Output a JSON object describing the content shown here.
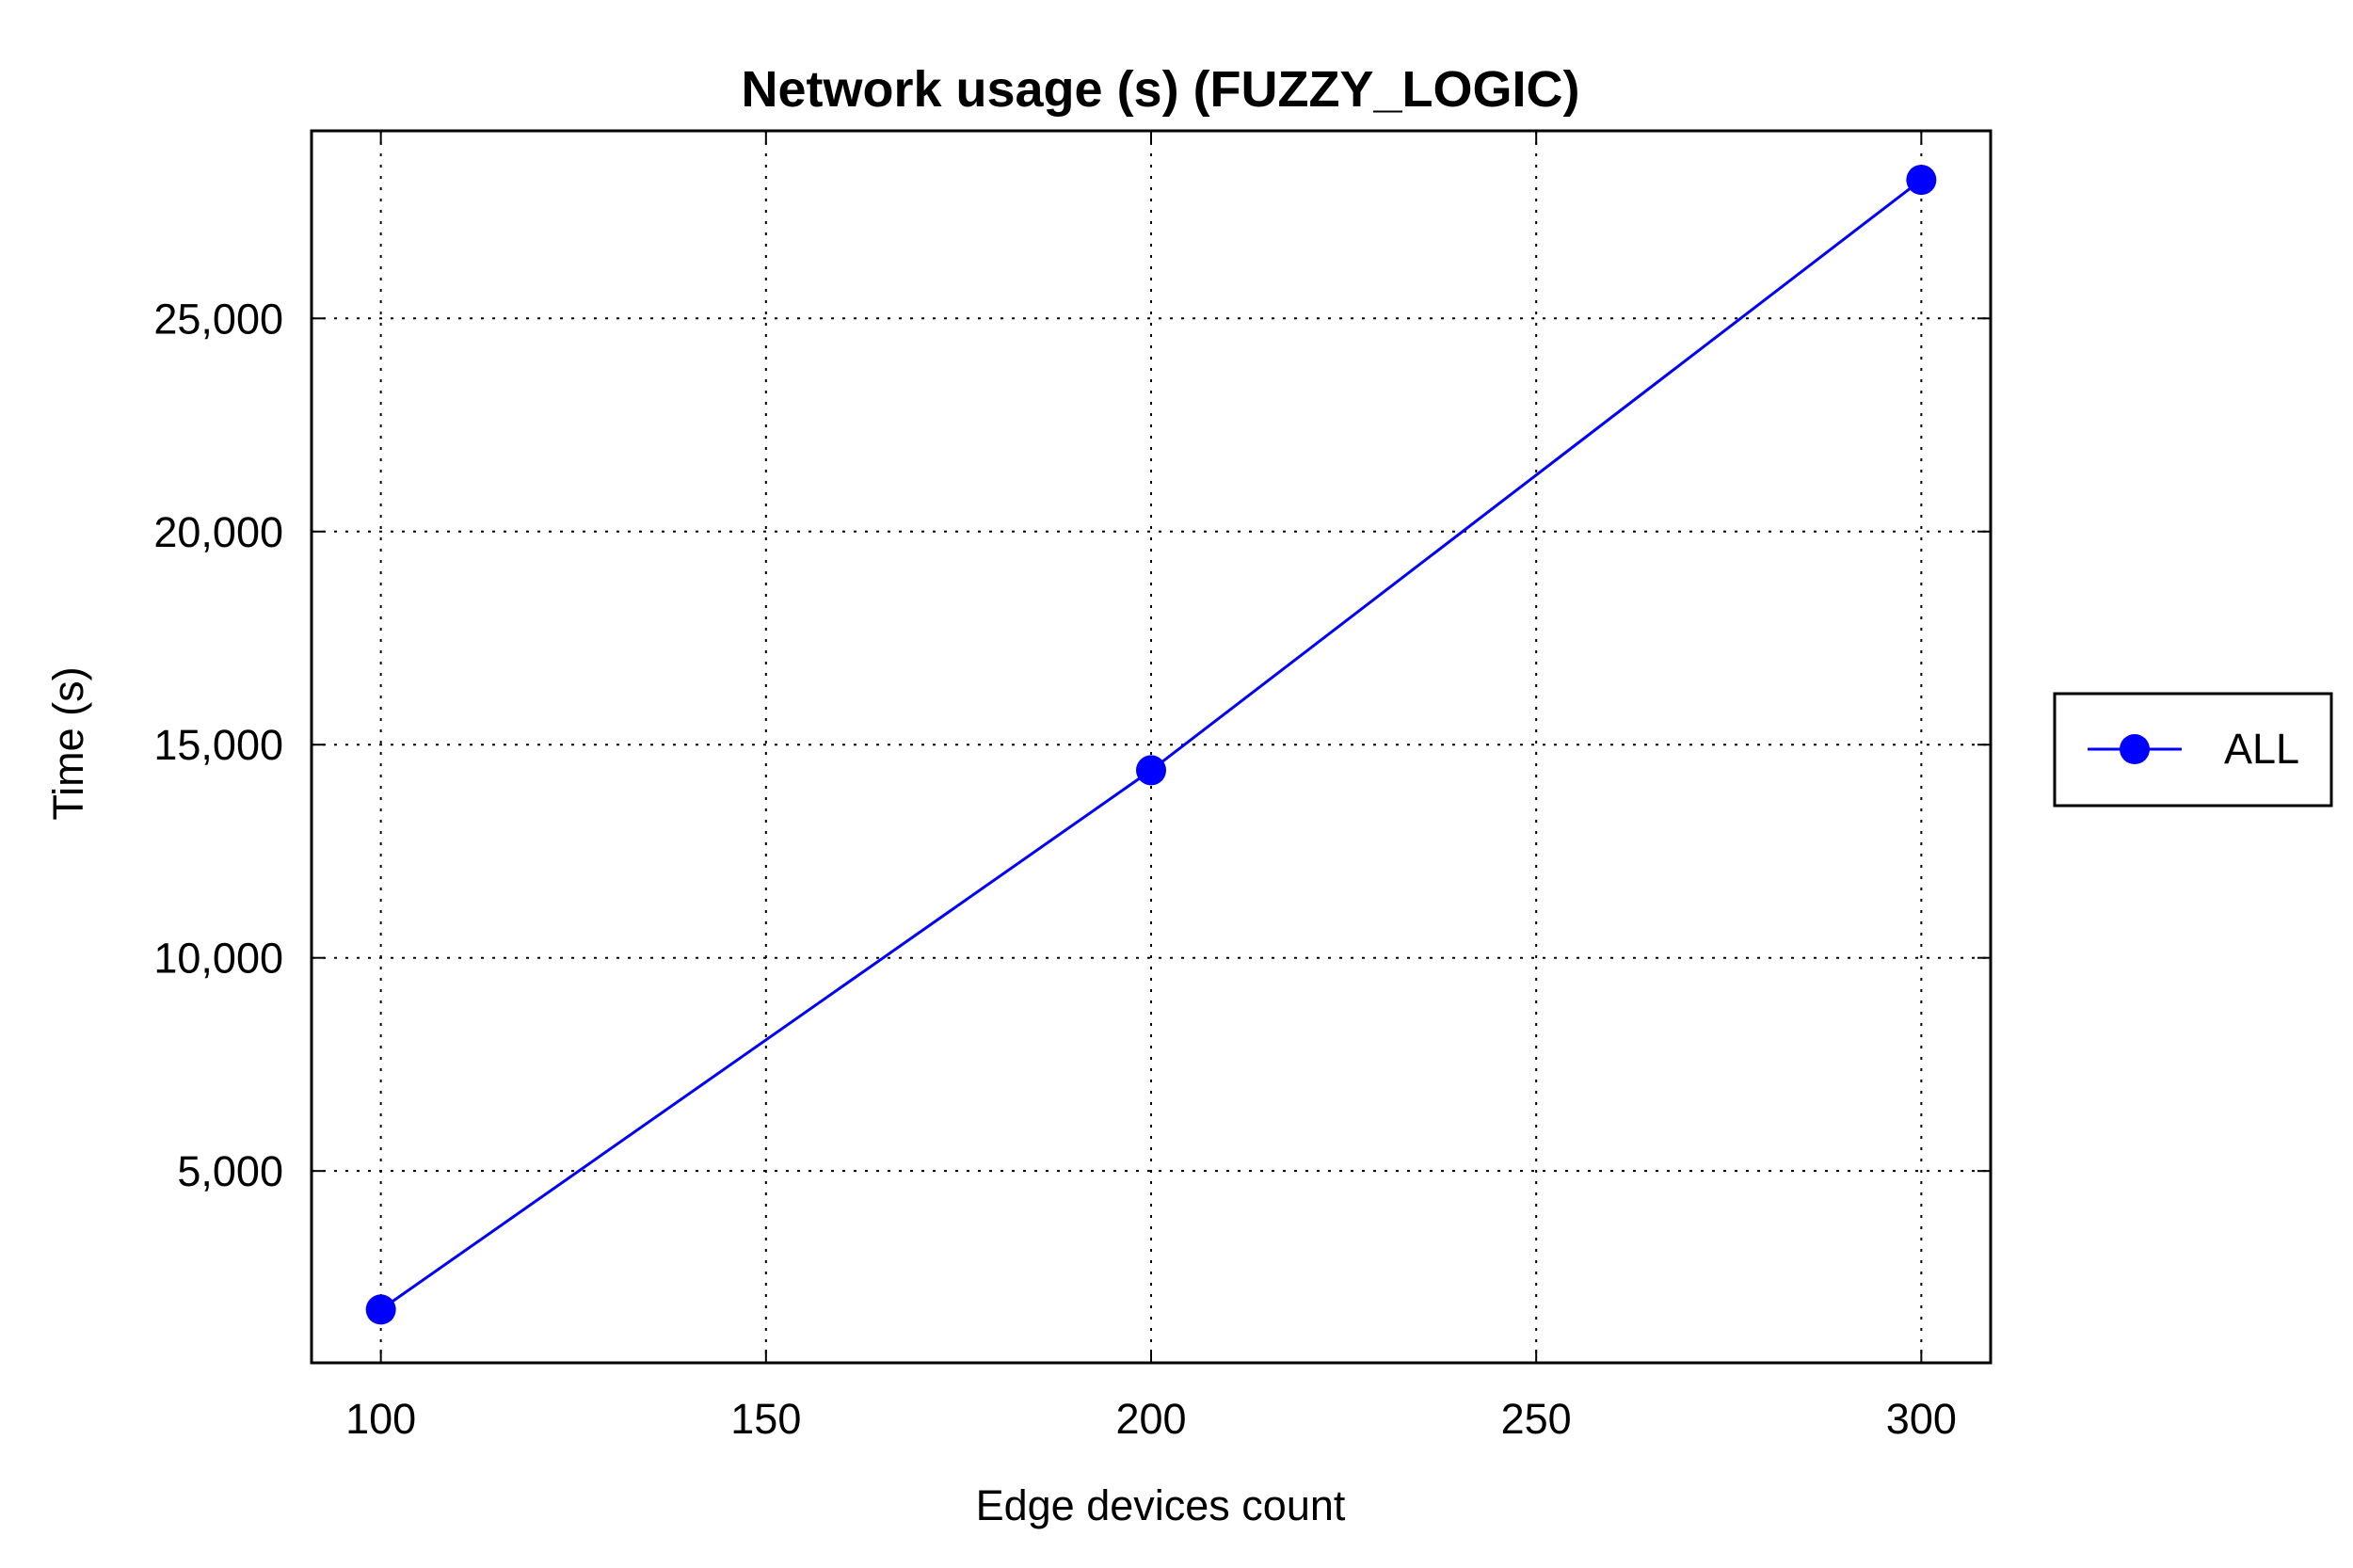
{
  "chart_data": {
    "type": "line",
    "title": "Network usage (s) (FUZZY_LOGIC)",
    "xlabel": "Edge devices count",
    "ylabel": "Time (s)",
    "x": [
      100,
      200,
      300
    ],
    "xticks": [
      100,
      150,
      200,
      250,
      300
    ],
    "xtick_labels": [
      "100",
      "150",
      "200",
      "250",
      "300"
    ],
    "yticks": [
      5000,
      10000,
      15000,
      20000,
      25000
    ],
    "ytick_labels": [
      "5,000",
      "10,000",
      "15,000",
      "20,000",
      "25,000"
    ],
    "xlim": [
      91,
      309
    ],
    "ylim": [
      500,
      29400
    ],
    "grid": true,
    "legend_position": "right",
    "series": [
      {
        "name": "ALL",
        "color": "#0000ff",
        "marker": "circle",
        "values": [
          1750,
          14400,
          28250
        ]
      }
    ]
  }
}
